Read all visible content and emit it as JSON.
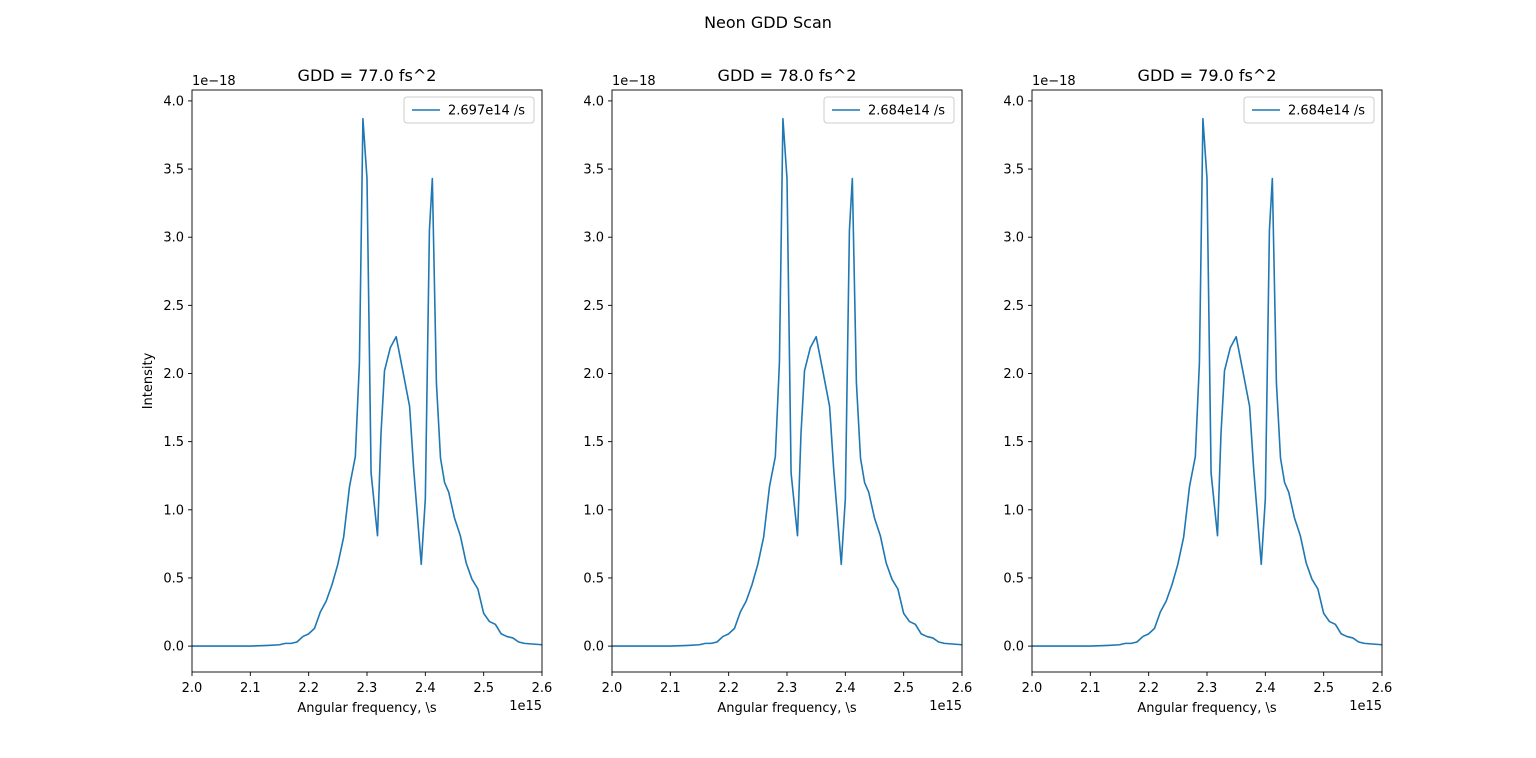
{
  "figure": {
    "suptitle": "Neon GDD Scan"
  },
  "chart_data": [
    {
      "type": "line",
      "title": "GDD = 77.0 fs^2",
      "xlabel": "Angular frequency, \\s",
      "ylabel": "Intensity",
      "x_offset_text": "1e15",
      "y_offset_text": "1e−18",
      "xlim": [
        2.0,
        2.6
      ],
      "ylim": [
        -0.19,
        4.08
      ],
      "xticks": [
        "2.0",
        "2.1",
        "2.2",
        "2.3",
        "2.4",
        "2.5",
        "2.6"
      ],
      "yticks": [
        "0.0",
        "0.5",
        "1.0",
        "1.5",
        "2.0",
        "2.5",
        "3.0",
        "3.5",
        "4.0"
      ],
      "legend_position": "upper right",
      "grid": false,
      "series": [
        {
          "name": "2.697e14 /s",
          "color": "#1f77b4",
          "x": [
            2.0,
            2.1,
            2.13,
            2.15,
            2.16,
            2.17,
            2.18,
            2.19,
            2.2,
            2.21,
            2.22,
            2.23,
            2.24,
            2.25,
            2.26,
            2.27,
            2.28,
            2.287,
            2.293,
            2.3,
            2.307,
            2.318,
            2.324,
            2.33,
            2.34,
            2.35,
            2.355,
            2.36,
            2.373,
            2.38,
            2.393,
            2.4,
            2.407,
            2.412,
            2.419,
            2.426,
            2.433,
            2.44,
            2.45,
            2.46,
            2.47,
            2.48,
            2.49,
            2.5,
            2.51,
            2.52,
            2.53,
            2.54,
            2.55,
            2.56,
            2.57,
            2.6
          ],
          "y": [
            0.0,
            0.0,
            0.005,
            0.01,
            0.02,
            0.02,
            0.03,
            0.07,
            0.09,
            0.13,
            0.25,
            0.33,
            0.45,
            0.6,
            0.8,
            1.17,
            1.39,
            2.08,
            3.87,
            3.43,
            1.27,
            0.81,
            1.56,
            2.02,
            2.19,
            2.27,
            2.16,
            2.05,
            1.76,
            1.3,
            0.6,
            1.08,
            3.05,
            3.43,
            1.93,
            1.38,
            1.2,
            1.13,
            0.94,
            0.81,
            0.61,
            0.49,
            0.42,
            0.24,
            0.18,
            0.16,
            0.09,
            0.07,
            0.06,
            0.03,
            0.02,
            0.01
          ]
        }
      ]
    },
    {
      "type": "line",
      "title": "GDD = 78.0 fs^2",
      "xlabel": "Angular frequency, \\s",
      "ylabel": "",
      "x_offset_text": "1e15",
      "y_offset_text": "1e−18",
      "xlim": [
        2.0,
        2.6
      ],
      "ylim": [
        -0.19,
        4.08
      ],
      "xticks": [
        "2.0",
        "2.1",
        "2.2",
        "2.3",
        "2.4",
        "2.5",
        "2.6"
      ],
      "yticks": [
        "0.0",
        "0.5",
        "1.0",
        "1.5",
        "2.0",
        "2.5",
        "3.0",
        "3.5",
        "4.0"
      ],
      "legend_position": "upper right",
      "grid": false,
      "series": [
        {
          "name": "2.684e14 /s",
          "color": "#1f77b4",
          "x": [
            2.0,
            2.1,
            2.13,
            2.15,
            2.16,
            2.17,
            2.18,
            2.19,
            2.2,
            2.21,
            2.22,
            2.23,
            2.24,
            2.25,
            2.26,
            2.27,
            2.28,
            2.287,
            2.293,
            2.3,
            2.307,
            2.318,
            2.324,
            2.33,
            2.34,
            2.35,
            2.355,
            2.36,
            2.373,
            2.38,
            2.393,
            2.4,
            2.407,
            2.412,
            2.419,
            2.426,
            2.433,
            2.44,
            2.45,
            2.46,
            2.47,
            2.48,
            2.49,
            2.5,
            2.51,
            2.52,
            2.53,
            2.54,
            2.55,
            2.56,
            2.57,
            2.6
          ],
          "y": [
            0.0,
            0.0,
            0.005,
            0.01,
            0.02,
            0.02,
            0.03,
            0.07,
            0.09,
            0.13,
            0.25,
            0.33,
            0.45,
            0.6,
            0.8,
            1.17,
            1.39,
            2.08,
            3.87,
            3.43,
            1.27,
            0.81,
            1.56,
            2.02,
            2.19,
            2.27,
            2.16,
            2.05,
            1.76,
            1.3,
            0.6,
            1.08,
            3.05,
            3.43,
            1.93,
            1.38,
            1.2,
            1.13,
            0.94,
            0.81,
            0.61,
            0.49,
            0.42,
            0.24,
            0.18,
            0.16,
            0.09,
            0.07,
            0.06,
            0.03,
            0.02,
            0.01
          ]
        }
      ]
    },
    {
      "type": "line",
      "title": "GDD = 79.0 fs^2",
      "xlabel": "Angular frequency, \\s",
      "ylabel": "",
      "x_offset_text": "1e15",
      "y_offset_text": "1e−18",
      "xlim": [
        2.0,
        2.6
      ],
      "ylim": [
        -0.19,
        4.08
      ],
      "xticks": [
        "2.0",
        "2.1",
        "2.2",
        "2.3",
        "2.4",
        "2.5",
        "2.6"
      ],
      "yticks": [
        "0.0",
        "0.5",
        "1.0",
        "1.5",
        "2.0",
        "2.5",
        "3.0",
        "3.5",
        "4.0"
      ],
      "legend_position": "upper right",
      "grid": false,
      "series": [
        {
          "name": "2.684e14 /s",
          "color": "#1f77b4",
          "x": [
            2.0,
            2.1,
            2.13,
            2.15,
            2.16,
            2.17,
            2.18,
            2.19,
            2.2,
            2.21,
            2.22,
            2.23,
            2.24,
            2.25,
            2.26,
            2.27,
            2.28,
            2.287,
            2.293,
            2.3,
            2.307,
            2.318,
            2.324,
            2.33,
            2.34,
            2.35,
            2.355,
            2.36,
            2.373,
            2.38,
            2.393,
            2.4,
            2.407,
            2.412,
            2.419,
            2.426,
            2.433,
            2.44,
            2.45,
            2.46,
            2.47,
            2.48,
            2.49,
            2.5,
            2.51,
            2.52,
            2.53,
            2.54,
            2.55,
            2.56,
            2.57,
            2.6
          ],
          "y": [
            0.0,
            0.0,
            0.005,
            0.01,
            0.02,
            0.02,
            0.03,
            0.07,
            0.09,
            0.13,
            0.25,
            0.33,
            0.45,
            0.6,
            0.8,
            1.17,
            1.39,
            2.08,
            3.87,
            3.43,
            1.27,
            0.81,
            1.56,
            2.02,
            2.19,
            2.27,
            2.16,
            2.05,
            1.76,
            1.3,
            0.6,
            1.08,
            3.05,
            3.43,
            1.93,
            1.38,
            1.2,
            1.13,
            0.94,
            0.81,
            0.61,
            0.49,
            0.42,
            0.24,
            0.18,
            0.16,
            0.09,
            0.07,
            0.06,
            0.03,
            0.02,
            0.01
          ]
        }
      ]
    }
  ]
}
